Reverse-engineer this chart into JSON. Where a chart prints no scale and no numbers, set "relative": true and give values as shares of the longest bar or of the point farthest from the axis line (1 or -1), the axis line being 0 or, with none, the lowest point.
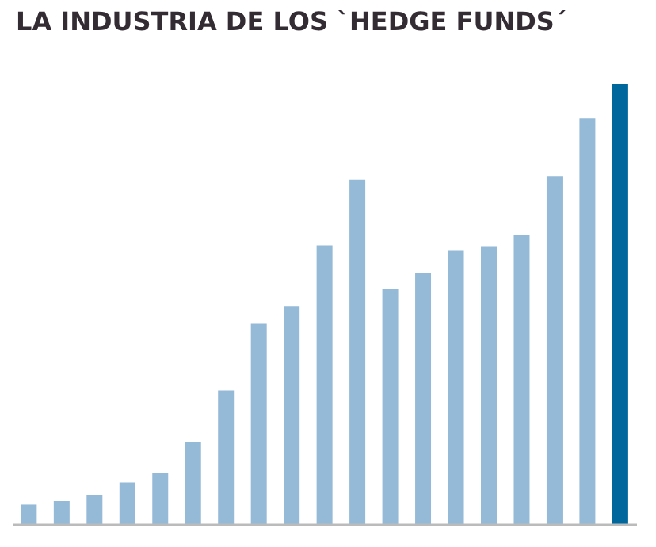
{
  "chart_data": {
    "type": "bar",
    "title": "LA INDUSTRIA DE LOS `HEDGE FUNDS´",
    "relative": true,
    "categories": [
      null,
      null,
      null,
      null,
      null,
      null,
      null,
      null,
      null,
      null,
      null,
      null,
      null,
      null,
      null,
      null,
      null,
      null,
      null
    ],
    "values": [
      0.046,
      0.054,
      0.067,
      0.096,
      0.117,
      0.188,
      0.305,
      0.456,
      0.496,
      0.634,
      0.783,
      0.535,
      0.572,
      0.623,
      0.632,
      0.657,
      0.791,
      0.922,
      1
    ],
    "colors": [
      "#95bad7",
      "#95bad7",
      "#95bad7",
      "#95bad7",
      "#95bad7",
      "#95bad7",
      "#95bad7",
      "#95bad7",
      "#95bad7",
      "#95bad7",
      "#95bad7",
      "#95bad7",
      "#95bad7",
      "#95bad7",
      "#95bad7",
      "#95bad7",
      "#95bad7",
      "#95bad7",
      "#00679d"
    ],
    "grid": false,
    "legend": false
  }
}
